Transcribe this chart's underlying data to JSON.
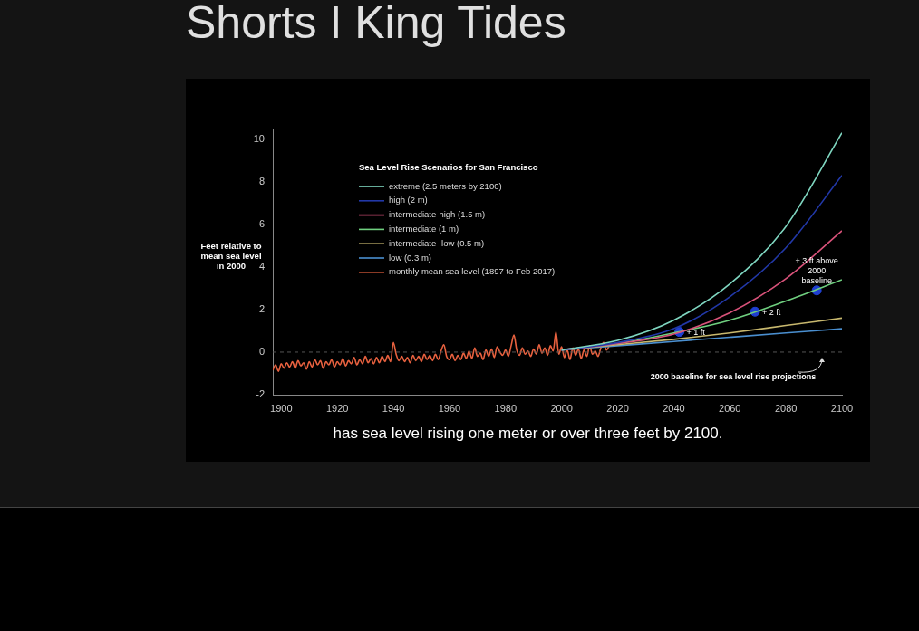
{
  "chart_data": {
    "type": "line",
    "title": "Shorts I King Tides",
    "ylabel": "Feet relative to mean sea level in 2000",
    "legend_title": "Sea Level Rise Scenarios for San Francisco",
    "legend": "top left",
    "grid": false,
    "marker": "none",
    "line_style": "solid",
    "xlim": [
      1897,
      2100
    ],
    "xticks": [
      1900,
      1920,
      1940,
      1960,
      1980,
      2000,
      2020,
      2040,
      2060,
      2080,
      2100
    ],
    "ylim": [
      -2,
      10.5
    ],
    "yticks": [
      -2,
      0,
      2,
      4,
      6,
      8,
      10
    ],
    "series": [
      {
        "name": "extreme (2.5 meters by 2100)",
        "color": "#7fd6c0",
        "x": [
          2000,
          2020,
          2040,
          2060,
          2080,
          2100
        ],
        "values": [
          0.1,
          0.55,
          1.5,
          3.2,
          5.9,
          10.3
        ]
      },
      {
        "name": "high (2 m)",
        "color": "#2238a8",
        "x": [
          2000,
          2020,
          2040,
          2060,
          2080,
          2100
        ],
        "values": [
          0.1,
          0.45,
          1.1,
          2.6,
          4.9,
          8.3
        ]
      },
      {
        "name": "intermediate-high (1.5 m)",
        "color": "#d9527a",
        "x": [
          2000,
          2020,
          2040,
          2060,
          2080,
          2100
        ],
        "values": [
          0.1,
          0.4,
          0.85,
          1.85,
          3.45,
          5.7
        ]
      },
      {
        "name": "intermediate (1 m)",
        "color": "#6fcf7f",
        "x": [
          2000,
          2020,
          2040,
          2060,
          2080,
          2100
        ],
        "values": [
          0.1,
          0.4,
          0.9,
          1.5,
          2.4,
          3.4
        ]
      },
      {
        "name": "intermediate- low (0.5 m)",
        "color": "#c8b86e",
        "x": [
          2000,
          2020,
          2040,
          2060,
          2080,
          2100
        ],
        "values": [
          0.1,
          0.35,
          0.6,
          0.9,
          1.25,
          1.6
        ]
      },
      {
        "name": "low (0.3 m)",
        "color": "#4a8fd0",
        "x": [
          2000,
          2020,
          2040,
          2060,
          2080,
          2100
        ],
        "values": [
          0.1,
          0.3,
          0.5,
          0.7,
          0.9,
          1.1
        ]
      },
      {
        "name": "monthly mean sea level (1897 to Feb 2017)",
        "color": "#e8613f",
        "x": [
          1897,
          1898,
          1899,
          1900,
          1901,
          1902,
          1903,
          1904,
          1905,
          1906,
          1907,
          1908,
          1909,
          1910,
          1911,
          1912,
          1913,
          1914,
          1915,
          1916,
          1917,
          1918,
          1919,
          1920,
          1921,
          1922,
          1923,
          1924,
          1925,
          1926,
          1927,
          1928,
          1929,
          1930,
          1931,
          1932,
          1933,
          1934,
          1935,
          1936,
          1937,
          1938,
          1939,
          1940,
          1941,
          1942,
          1943,
          1944,
          1945,
          1946,
          1947,
          1948,
          1949,
          1950,
          1951,
          1952,
          1953,
          1954,
          1955,
          1956,
          1957,
          1958,
          1959,
          1960,
          1961,
          1962,
          1963,
          1964,
          1965,
          1966,
          1967,
          1968,
          1969,
          1970,
          1971,
          1972,
          1973,
          1974,
          1975,
          1976,
          1977,
          1978,
          1979,
          1980,
          1981,
          1982,
          1983,
          1984,
          1985,
          1986,
          1987,
          1988,
          1989,
          1990,
          1991,
          1992,
          1993,
          1994,
          1995,
          1996,
          1997,
          1998,
          1999,
          2000,
          2001,
          2002,
          2003,
          2004,
          2005,
          2006,
          2007,
          2008,
          2009,
          2010,
          2011,
          2012,
          2013,
          2014,
          2015,
          2016,
          2017
        ],
        "values": [
          -0.85,
          -0.6,
          -0.9,
          -0.55,
          -0.75,
          -0.5,
          -0.7,
          -0.45,
          -0.75,
          -0.4,
          -0.65,
          -0.5,
          -0.8,
          -0.45,
          -0.7,
          -0.35,
          -0.6,
          -0.4,
          -0.75,
          -0.45,
          -0.6,
          -0.35,
          -0.7,
          -0.45,
          -0.6,
          -0.3,
          -0.65,
          -0.4,
          -0.55,
          -0.25,
          -0.6,
          -0.35,
          -0.55,
          -0.2,
          -0.5,
          -0.3,
          -0.55,
          -0.25,
          -0.5,
          -0.2,
          -0.45,
          -0.15,
          -0.45,
          0.45,
          -0.1,
          -0.4,
          -0.2,
          -0.45,
          -0.25,
          -0.5,
          -0.15,
          -0.4,
          -0.2,
          -0.45,
          -0.1,
          -0.35,
          -0.15,
          -0.4,
          -0.1,
          -0.35,
          0.05,
          0.35,
          -0.2,
          -0.35,
          -0.1,
          -0.4,
          -0.15,
          -0.35,
          -0.05,
          -0.3,
          0.05,
          -0.3,
          0.2,
          -0.2,
          -0.05,
          -0.35,
          0.1,
          -0.2,
          0.15,
          -0.25,
          0.25,
          0.0,
          -0.15,
          0.1,
          -0.2,
          0.3,
          0.8,
          0.1,
          -0.15,
          0.2,
          -0.1,
          0.05,
          -0.2,
          0.15,
          -0.1,
          0.35,
          -0.05,
          0.2,
          -0.15,
          0.3,
          0.05,
          0.95,
          -0.1,
          0.25,
          -0.25,
          0.1,
          -0.35,
          0.2,
          -0.15,
          0.15,
          -0.3,
          0.1,
          -0.2,
          0.3,
          -0.1,
          0.05,
          -0.2,
          0.2,
          0.45,
          0.1,
          0.3
        ]
      },
      {
        "type": "scatter",
        "marker": "circle",
        "color": "#1f3fd1",
        "x": [
          2042,
          2069,
          2091
        ],
        "values": [
          0.95,
          1.9,
          2.9
        ]
      }
    ],
    "ref_lines": [
      {
        "axis": "y",
        "value": 0,
        "label": "2000 baseline for sea level rise projections",
        "line_style": "dashed",
        "color": "#555555"
      }
    ],
    "annotations": [
      {
        "text": "+ 1 ft",
        "x": 2042,
        "y": 0.95
      },
      {
        "text": "+ 2 ft",
        "x": 2069,
        "y": 1.9
      },
      {
        "text": "+ 3 ft above 2000 baseline",
        "x": 2091,
        "y": 2.9
      },
      "has sea level rising one meter or over three feet by 2100."
    ]
  }
}
